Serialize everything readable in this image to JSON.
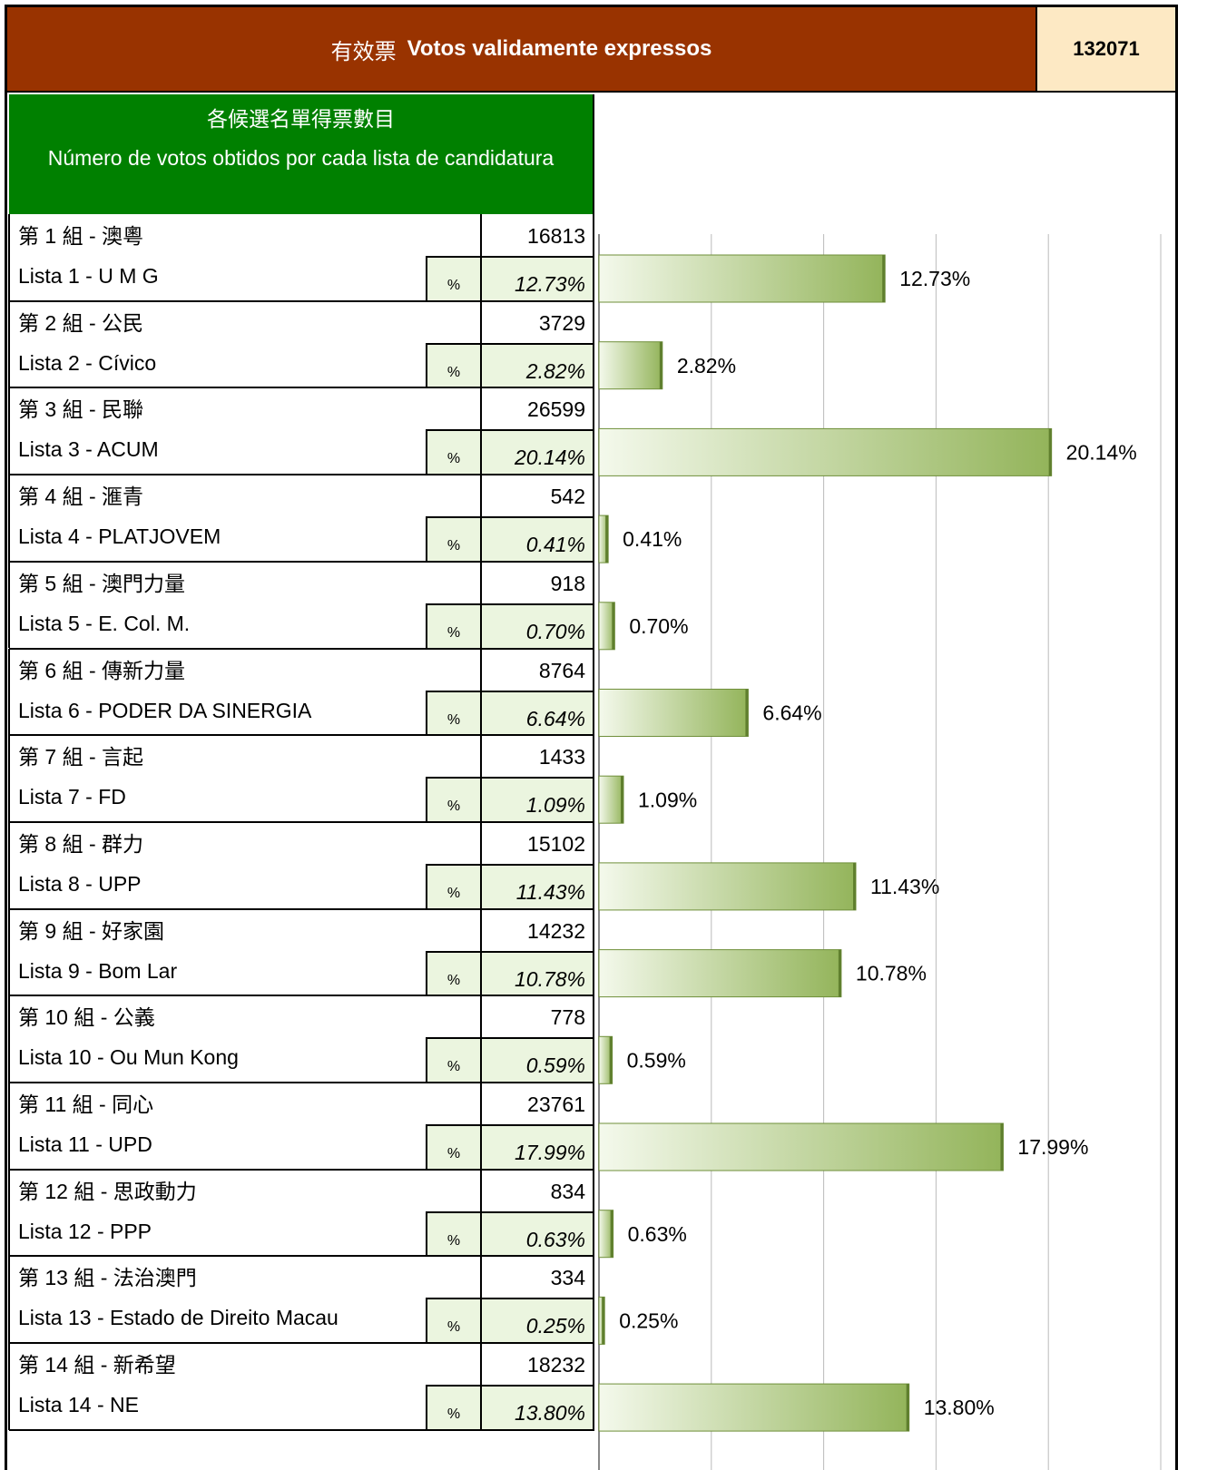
{
  "header": {
    "label_zh": "有效票",
    "label_pt": "Votos validamente expressos",
    "total": 132071
  },
  "table_header": {
    "zh": "各候選名單得票數目",
    "pt": "Número de votos obtidos por cada lista de candidatura"
  },
  "percent_symbol": "%",
  "lists": [
    {
      "group": "第 1 組 - 澳粵",
      "name": "Lista 1 - U M G",
      "votes": 16813,
      "percent": 12.73,
      "percent_label": "12.73%"
    },
    {
      "group": "第 2 組 - 公民",
      "name": "Lista 2 - Cívico",
      "votes": 3729,
      "percent": 2.82,
      "percent_label": "2.82%"
    },
    {
      "group": "第 3 組 - 民聯",
      "name": "Lista 3 - ACUM",
      "votes": 26599,
      "percent": 20.14,
      "percent_label": "20.14%"
    },
    {
      "group": "第 4 組 - 滙青",
      "name": "Lista 4 - PLATJOVEM",
      "votes": 542,
      "percent": 0.41,
      "percent_label": "0.41%"
    },
    {
      "group": "第 5 組 - 澳門力量",
      "name": "Lista 5 - E. Col. M.",
      "votes": 918,
      "percent": 0.7,
      "percent_label": "0.70%"
    },
    {
      "group": "第 6 組 - 傳新力量",
      "name": "Lista 6 - PODER DA SINERGIA",
      "votes": 8764,
      "percent": 6.64,
      "percent_label": "6.64%"
    },
    {
      "group": "第 7 組 - 言起",
      "name": "Lista 7 - FD",
      "votes": 1433,
      "percent": 1.09,
      "percent_label": "1.09%"
    },
    {
      "group": "第 8 組 - 群力",
      "name": "Lista 8 - UPP",
      "votes": 15102,
      "percent": 11.43,
      "percent_label": "11.43%"
    },
    {
      "group": "第 9 組 - 好家園",
      "name": "Lista 9 - Bom Lar",
      "votes": 14232,
      "percent": 10.78,
      "percent_label": "10.78%"
    },
    {
      "group": "第 10 組 - 公義",
      "name": "Lista 10 - Ou Mun Kong",
      "votes": 778,
      "percent": 0.59,
      "percent_label": "0.59%"
    },
    {
      "group": "第 11 組 - 同心",
      "name": "Lista 11 - UPD",
      "votes": 23761,
      "percent": 17.99,
      "percent_label": "17.99%"
    },
    {
      "group": "第 12 組 - 思政動力",
      "name": "Lista 12 - PPP",
      "votes": 834,
      "percent": 0.63,
      "percent_label": "0.63%"
    },
    {
      "group": "第 13 組 - 法治澳門",
      "name": "Lista 13 - Estado de Direito Macau",
      "votes": 334,
      "percent": 0.25,
      "percent_label": "0.25%"
    },
    {
      "group": "第 14 組 - 新希望",
      "name": "Lista 14 - NE",
      "votes": 18232,
      "percent": 13.8,
      "percent_label": "13.80%"
    }
  ],
  "chart": {
    "xlim": [
      0,
      25
    ],
    "xticks": [
      0,
      5,
      10,
      15,
      20,
      25
    ],
    "color": "#9bbb59"
  }
}
